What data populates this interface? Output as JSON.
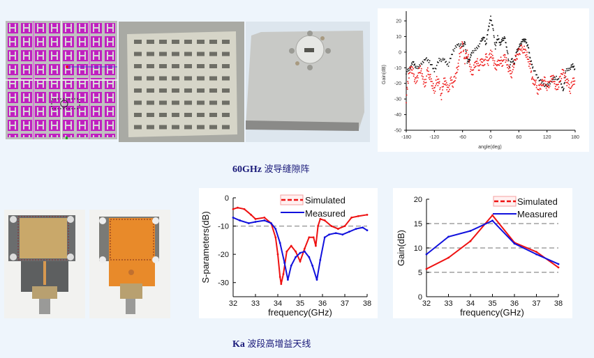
{
  "captions": {
    "top_prefix": "60GHz",
    "top_suffix": "波导缝隙阵",
    "bottom_prefix": "Ka",
    "bottom_suffix": "波段高增益天线"
  },
  "colors": {
    "background": "#eef5fc",
    "caption": "#1a1a7a",
    "simulated": "#ee1111",
    "measured": "#1111dd",
    "grid_dash": "#a0a0a0",
    "feed_network": "#c020c0"
  },
  "images": [
    {
      "name": "feed-network-layout",
      "icon": "magenta-h-tree-layout"
    },
    {
      "name": "slot-array-front-photo",
      "icon": "grey-plate-with-slots"
    },
    {
      "name": "slot-array-back-photo",
      "icon": "silver-plate-with-waveguide-port"
    },
    {
      "name": "ka-antenna-front-photo",
      "icon": "pcb-antenna-with-connector"
    },
    {
      "name": "ka-antenna-back-photo",
      "icon": "copper-pcb-with-connector"
    }
  ],
  "chart_data": [
    {
      "type": "scatter",
      "title": "",
      "xlabel": "angle(deg)",
      "ylabel": "Gain(dB)",
      "xlim": [
        -180,
        180
      ],
      "ylim": [
        -50,
        25
      ],
      "xticks": [
        "-180",
        "-120",
        "-60",
        "0",
        "60",
        "120",
        "180"
      ],
      "yticks": [
        "20",
        "10",
        "0",
        "-10",
        "-20",
        "-30",
        "-40",
        "-50"
      ],
      "grid": false,
      "series": [
        {
          "name": "co-pol",
          "color": "#111111",
          "x": [
            -180,
            -172,
            -165,
            -160,
            -150,
            -140,
            -130,
            -120,
            -110,
            -100,
            -90,
            -80,
            -70,
            -60,
            -55,
            -50,
            -45,
            -40,
            -30,
            -20,
            -15,
            -10,
            -5,
            0,
            5,
            10,
            15,
            20,
            25,
            30,
            35,
            40,
            45,
            50,
            55,
            60,
            65,
            70,
            75,
            80,
            85,
            90,
            100,
            110,
            120,
            130,
            140,
            150,
            155,
            160,
            170,
            175,
            180
          ],
          "y": [
            -13,
            -10,
            -6,
            -10,
            -9,
            -4,
            -6,
            -12,
            -5,
            -5,
            -8,
            1,
            5,
            4,
            6,
            -6,
            -5,
            0,
            2,
            7,
            10,
            5,
            15,
            22,
            15,
            3,
            10,
            5,
            8,
            9,
            2,
            -10,
            -4,
            -8,
            0,
            3,
            6,
            8,
            7,
            3,
            -5,
            -10,
            -16,
            -20,
            -22,
            -18,
            -16,
            -20,
            -25,
            -12,
            -10,
            -8,
            -12
          ]
        },
        {
          "name": "cross-pol",
          "color": "#ee1111",
          "x": [
            -180,
            -175,
            -170,
            -165,
            -160,
            -155,
            -150,
            -145,
            -140,
            -135,
            -130,
            -125,
            -120,
            -115,
            -110,
            -105,
            -100,
            -95,
            -90,
            -85,
            -80,
            -75,
            -70,
            -65,
            -60,
            -55,
            -50,
            -45,
            -40,
            -35,
            -30,
            -25,
            -20,
            -15,
            -10,
            -5,
            0,
            5,
            10,
            15,
            20,
            25,
            30,
            35,
            40,
            45,
            50,
            55,
            60,
            65,
            70,
            75,
            80,
            85,
            90,
            95,
            100,
            105,
            110,
            115,
            120,
            125,
            130,
            135,
            140,
            145,
            150,
            155,
            160,
            165,
            170,
            175,
            180
          ],
          "y": [
            -30,
            -15,
            -10,
            -13,
            -20,
            -14,
            -10,
            -16,
            -22,
            -12,
            -15,
            -20,
            -25,
            -18,
            -20,
            -28,
            -18,
            -20,
            -25,
            -18,
            -20,
            -15,
            -10,
            0,
            5,
            -5,
            0,
            -8,
            -14,
            -10,
            -5,
            -10,
            -5,
            -8,
            -3,
            -6,
            0,
            -4,
            -10,
            -8,
            -5,
            -7,
            -2,
            -8,
            -12,
            -14,
            -6,
            -3,
            0,
            2,
            2,
            0,
            -5,
            -10,
            -20,
            -18,
            -25,
            -22,
            -20,
            -18,
            -22,
            -20,
            -16,
            -18,
            -24,
            -20,
            -15,
            -12,
            -18,
            -20,
            -24,
            -18,
            -20
          ]
        }
      ]
    },
    {
      "type": "line",
      "title": "",
      "xlabel": "frequency(GHz)",
      "ylabel": "S-parameters(dB)",
      "xlim": [
        32,
        38
      ],
      "ylim": [
        -35,
        0
      ],
      "xticks": [
        "32",
        "33",
        "34",
        "35",
        "36",
        "37",
        "38"
      ],
      "yticks": [
        "0",
        "-10",
        "-20",
        "-30"
      ],
      "reference_line": -10,
      "legend": "top-right",
      "series": [
        {
          "name": "Simulated",
          "color": "#ee1111",
          "x": [
            32,
            32.2,
            32.5,
            32.8,
            33,
            33.4,
            33.7,
            33.9,
            34.0,
            34.1,
            34.15,
            34.25,
            34.4,
            34.6,
            34.8,
            35.0,
            35.2,
            35.4,
            35.6,
            35.7,
            35.8,
            35.9,
            36.1,
            36.4,
            36.7,
            37.0,
            37.3,
            37.6,
            38
          ],
          "y": [
            -4,
            -3.5,
            -4,
            -6,
            -7.5,
            -7,
            -9,
            -14,
            -20,
            -28,
            -30.5,
            -27,
            -19,
            -17,
            -19,
            -22.5,
            -18,
            -14,
            -14,
            -17,
            -10,
            -7.5,
            -8,
            -10,
            -11,
            -10,
            -7,
            -6.5,
            -6
          ]
        },
        {
          "name": "Measured",
          "color": "#1111dd",
          "x": [
            32,
            32.3,
            32.7,
            33,
            33.4,
            33.7,
            33.9,
            34.1,
            34.3,
            34.45,
            34.6,
            34.8,
            35.0,
            35.2,
            35.4,
            35.55,
            35.75,
            35.9,
            36.1,
            36.3,
            36.6,
            36.9,
            37.2,
            37.5,
            37.8,
            38
          ],
          "y": [
            -7,
            -8,
            -9,
            -8.5,
            -8,
            -9,
            -11,
            -16,
            -23,
            -29,
            -24,
            -21,
            -19.5,
            -19,
            -21,
            -24,
            -29,
            -22,
            -14,
            -13,
            -12.5,
            -13,
            -12,
            -11,
            -10.5,
            -11.5
          ]
        }
      ]
    },
    {
      "type": "line",
      "title": "",
      "xlabel": "frequency(GHz)",
      "ylabel": "Gain(dB)",
      "xlim": [
        32,
        38
      ],
      "ylim": [
        0,
        20
      ],
      "xticks": [
        "32",
        "33",
        "34",
        "35",
        "36",
        "37",
        "38"
      ],
      "yticks": [
        "0",
        "5",
        "10",
        "15",
        "20"
      ],
      "grid": true,
      "legend": "top-right",
      "series": [
        {
          "name": "Simulated",
          "color": "#ee1111",
          "x": [
            32,
            33,
            34,
            35,
            36,
            37,
            38
          ],
          "y": [
            5.7,
            8.0,
            11.4,
            16.7,
            11.1,
            9.2,
            6.0
          ]
        },
        {
          "name": "Measured",
          "color": "#1111dd",
          "x": [
            32,
            33,
            34,
            35,
            36,
            37,
            38
          ],
          "y": [
            8.7,
            12.3,
            13.5,
            15.6,
            10.9,
            8.7,
            6.7
          ]
        }
      ]
    }
  ]
}
